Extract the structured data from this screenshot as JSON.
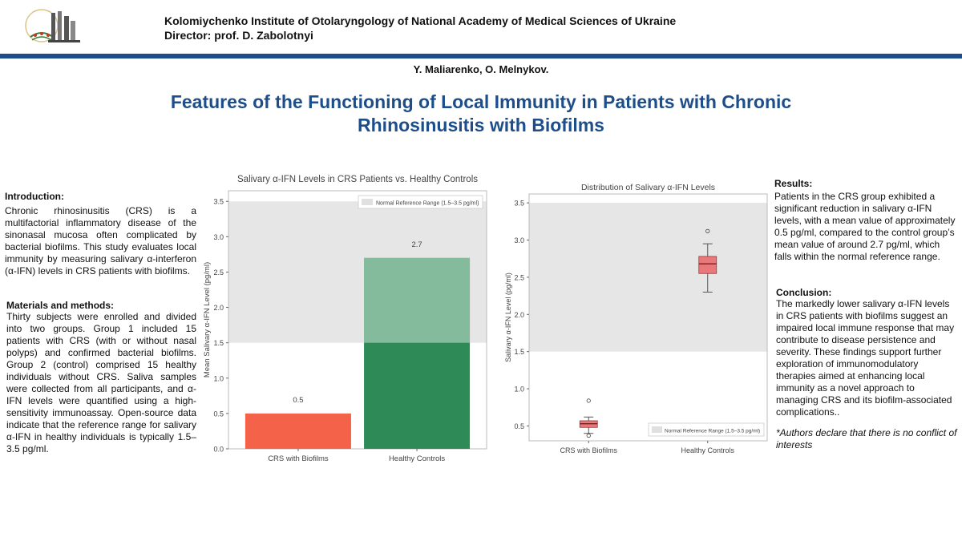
{
  "header": {
    "institute": "Kolomiychenko Institute of Otolaryngology of National Academy of Medical Sciences of Ukraine",
    "director": "Director: prof. D. Zabolotnyi",
    "authors": "Y. Maliarenko, O. Melnykov.",
    "title_line1": "Features of the Functioning of Local Immunity in Patients with Chronic",
    "title_line2": "Rhinosinusitis with Biofilms"
  },
  "colors": {
    "accent": "#1d4e89",
    "bar_crs": "#f4624a",
    "bar_healthy": "#2e8b57",
    "box": "#e8787a"
  },
  "introduction": {
    "heading": "Introduction:",
    "text": "Chronic rhinosinusitis (CRS) is a multifactorial inflammatory disease of the sinonasal mucosa often complicated by bacterial biofilms. This study evaluates local immunity by measuring salivary α-interferon (α-IFN) levels in CRS patients with biofilms."
  },
  "methods": {
    "heading": "Materials and methods:",
    "text": "Thirty subjects were enrolled and divided into two groups. Group 1 included 15 patients with CRS (with or without nasal polyps) and confirmed bacterial biofilms. Group 2 (control) comprised 15 healthy individuals without CRS. Saliva samples were collected from all participants, and α-IFN levels were quantified using a high-sensitivity immunoassay. Open-source data indicate that the reference range for salivary α-IFN in healthy individuals is typically 1.5–3.5 pg/ml."
  },
  "results": {
    "heading": "Results:",
    "text": "Patients in the CRS group exhibited a significant reduction in salivary α-IFN levels, with a mean value of approximately 0.5 pg/ml, compared to the control group’s mean value of around 2.7 pg/ml, which falls within the normal reference range."
  },
  "conclusion": {
    "heading": "Conclusion:",
    "text": "The markedly lower salivary α-IFN levels in CRS patients with biofilms suggest an impaired local immune response that may contribute to disease persistence and severity. These findings support further exploration of immunomodulatory therapies aimed at enhancing local immunity as a novel approach to managing CRS and its biofilm-associated complications..",
    "disclaimer": "*Authors declare that there is no conflict of interests"
  },
  "chart_data": [
    {
      "type": "bar",
      "title": "Salivary α-IFN Levels in CRS Patients vs. Healthy Controls",
      "categories": [
        "CRS with Biofilms",
        "Healthy Controls"
      ],
      "values": [
        0.5,
        2.7
      ],
      "data_labels": [
        "0.5",
        "2.7"
      ],
      "ylabel": "Mean Salivary α-IFN Level (pg/ml)",
      "ylim": [
        0,
        3.65
      ],
      "yticks": [
        "0.0",
        "0.5",
        "1.0",
        "1.5",
        "2.0",
        "2.5",
        "3.0",
        "3.5"
      ],
      "reference_range": [
        1.5,
        3.5
      ],
      "legend": "Normal Reference Range (1.5–3.5 pg/ml)",
      "legend_position": "top-right"
    },
    {
      "type": "box",
      "title": "Distribution of Salivary α-IFN Levels",
      "categories": [
        "CRS with Biofilms",
        "Healthy Controls"
      ],
      "boxes": [
        {
          "whisker_low": 0.4,
          "q1": 0.48,
          "median": 0.53,
          "q3": 0.57,
          "whisker_high": 0.62,
          "outliers": [
            0.84,
            0.37
          ]
        },
        {
          "whisker_low": 2.3,
          "q1": 2.55,
          "median": 2.68,
          "q3": 2.78,
          "whisker_high": 2.95,
          "outliers": [
            3.12
          ]
        }
      ],
      "ylabel": "Salivary α-IFN Level (pg/ml)",
      "ylim": [
        0.3,
        3.62
      ],
      "yticks": [
        "0.5",
        "1.0",
        "1.5",
        "2.0",
        "2.5",
        "3.0",
        "3.5"
      ],
      "reference_range": [
        1.5,
        3.5
      ],
      "legend": "Normal Reference Range (1.5–3.5 pg/ml)",
      "legend_position": "bottom-right"
    }
  ]
}
